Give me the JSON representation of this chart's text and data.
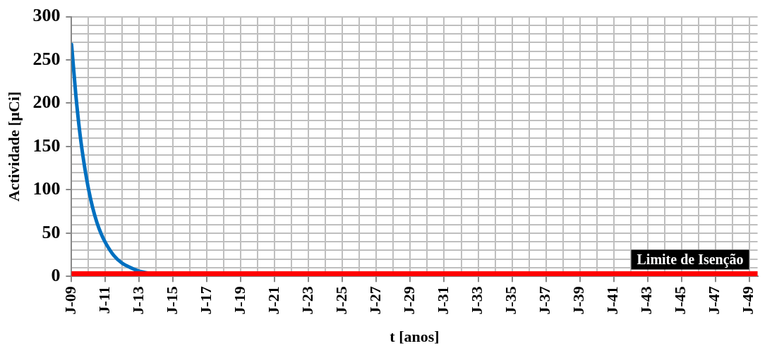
{
  "chart_data": {
    "type": "line",
    "xlabel": "t [anos]",
    "ylabel": "Actividade [μCi]",
    "x": [
      "2009-01",
      "2009-04",
      "2009-07",
      "2009-10",
      "2010-01",
      "2010-04",
      "2010-07",
      "2010-10",
      "2011-01",
      "2011-07",
      "2012-01",
      "2012-07",
      "2013-01",
      "2013-07"
    ],
    "series": [
      {
        "color": "#0070c0",
        "values": [
          268,
          210,
          164,
          129,
          101,
          79,
          62,
          49,
          39,
          24,
          15,
          10,
          6,
          4
        ]
      }
    ],
    "xlim": [
      "2009-01",
      "2049-07"
    ],
    "xticks": [
      {
        "value": "2009-01",
        "label": "J-09"
      },
      {
        "value": "2010-01",
        "label": null
      },
      {
        "value": "2011-01",
        "label": "J-11"
      },
      {
        "value": "2012-01",
        "label": null
      },
      {
        "value": "2013-01",
        "label": "J-13"
      },
      {
        "value": "2014-01",
        "label": null
      },
      {
        "value": "2015-01",
        "label": "J-15"
      },
      {
        "value": "2016-01",
        "label": null
      },
      {
        "value": "2017-01",
        "label": "J-17"
      },
      {
        "value": "2018-01",
        "label": null
      },
      {
        "value": "2019-01",
        "label": "J-19"
      },
      {
        "value": "2020-01",
        "label": null
      },
      {
        "value": "2021-01",
        "label": "J-21"
      },
      {
        "value": "2022-01",
        "label": null
      },
      {
        "value": "2023-01",
        "label": "J-23"
      },
      {
        "value": "2024-01",
        "label": null
      },
      {
        "value": "2025-01",
        "label": "J-25"
      },
      {
        "value": "2026-01",
        "label": null
      },
      {
        "value": "2027-01",
        "label": "J-27"
      },
      {
        "value": "2028-01",
        "label": null
      },
      {
        "value": "2029-01",
        "label": "J-29"
      },
      {
        "value": "2030-01",
        "label": null
      },
      {
        "value": "2031-01",
        "label": "J-31"
      },
      {
        "value": "2032-01",
        "label": null
      },
      {
        "value": "2033-01",
        "label": "J-33"
      },
      {
        "value": "2034-01",
        "label": null
      },
      {
        "value": "2035-01",
        "label": "J-35"
      },
      {
        "value": "2036-01",
        "label": null
      },
      {
        "value": "2037-01",
        "label": "J-37"
      },
      {
        "value": "2038-01",
        "label": null
      },
      {
        "value": "2039-01",
        "label": "J-39"
      },
      {
        "value": "2040-01",
        "label": null
      },
      {
        "value": "2041-01",
        "label": "J-41"
      },
      {
        "value": "2042-01",
        "label": null
      },
      {
        "value": "2043-01",
        "label": "J-43"
      },
      {
        "value": "2044-01",
        "label": null
      },
      {
        "value": "2045-01",
        "label": "J-45"
      },
      {
        "value": "2046-01",
        "label": null
      },
      {
        "value": "2047-01",
        "label": "J-47"
      },
      {
        "value": "2048-01",
        "label": null
      },
      {
        "value": "2049-01",
        "label": "J-49"
      }
    ],
    "ylim": [
      0,
      300
    ],
    "yticks": [
      0,
      {
        "value": 10,
        "label": null
      },
      {
        "value": 20,
        "label": null
      },
      {
        "value": 30,
        "label": null
      },
      {
        "value": 40,
        "label": null
      },
      50,
      {
        "value": 60,
        "label": null
      },
      {
        "value": 70,
        "label": null
      },
      {
        "value": 80,
        "label": null
      },
      {
        "value": 90,
        "label": null
      },
      100,
      {
        "value": 110,
        "label": null
      },
      {
        "value": 120,
        "label": null
      },
      {
        "value": 130,
        "label": null
      },
      {
        "value": 140,
        "label": null
      },
      150,
      {
        "value": 160,
        "label": null
      },
      {
        "value": 170,
        "label": null
      },
      {
        "value": 180,
        "label": null
      },
      {
        "value": 190,
        "label": null
      },
      200,
      {
        "value": 210,
        "label": null
      },
      {
        "value": 220,
        "label": null
      },
      {
        "value": 230,
        "label": null
      },
      {
        "value": 240,
        "label": null
      },
      250,
      {
        "value": 260,
        "label": null
      },
      {
        "value": 270,
        "label": null
      },
      {
        "value": 280,
        "label": null
      },
      {
        "value": 290,
        "label": null
      },
      300
    ],
    "ref_lines": [
      {
        "axis": "y",
        "value": 3,
        "label": "Limite de Isenção",
        "color": "#ff0000"
      }
    ],
    "grid": true,
    "legend": false,
    "marker": "none",
    "line_style": "solid"
  }
}
